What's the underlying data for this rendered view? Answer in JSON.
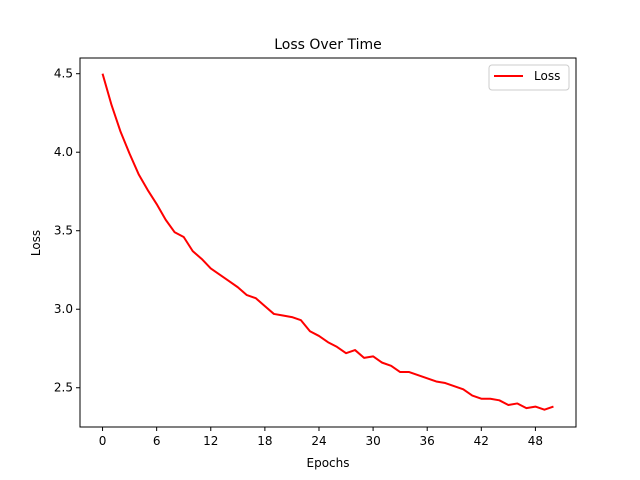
{
  "chart_data": {
    "type": "line",
    "title": "Loss Over Time",
    "xlabel": "Epochs",
    "ylabel": "Loss",
    "xlim": [
      -2.5,
      52.5
    ],
    "ylim": [
      2.25,
      4.6
    ],
    "xticks": [
      0,
      6,
      12,
      18,
      24,
      30,
      36,
      42,
      48
    ],
    "xtick_labels": [
      "0",
      "6",
      "12",
      "18",
      "24",
      "30",
      "36",
      "42",
      "48"
    ],
    "yticks": [
      2.5,
      3.0,
      3.5,
      4.0,
      4.5
    ],
    "ytick_labels": [
      "2.5",
      "3.0",
      "3.5",
      "4.0",
      "4.5"
    ],
    "grid": false,
    "legend": {
      "placement": "top-right",
      "entries": [
        "Loss"
      ]
    },
    "series": [
      {
        "name": "Loss",
        "color": "#ff0000",
        "x": [
          0,
          1,
          2,
          3,
          4,
          5,
          6,
          7,
          8,
          9,
          10,
          11,
          12,
          13,
          14,
          15,
          16,
          17,
          18,
          19,
          20,
          21,
          22,
          23,
          24,
          25,
          26,
          27,
          28,
          29,
          30,
          31,
          32,
          33,
          34,
          35,
          36,
          37,
          38,
          39,
          40,
          41,
          42,
          43,
          44,
          45,
          46,
          47,
          48,
          49,
          50
        ],
        "y": [
          4.5,
          4.3,
          4.13,
          3.99,
          3.86,
          3.76,
          3.67,
          3.57,
          3.49,
          3.46,
          3.37,
          3.32,
          3.26,
          3.22,
          3.18,
          3.14,
          3.09,
          3.07,
          3.02,
          2.97,
          2.96,
          2.95,
          2.93,
          2.86,
          2.83,
          2.79,
          2.76,
          2.72,
          2.74,
          2.69,
          2.7,
          2.66,
          2.64,
          2.6,
          2.6,
          2.58,
          2.56,
          2.54,
          2.53,
          2.51,
          2.49,
          2.45,
          2.43,
          2.43,
          2.42,
          2.39,
          2.4,
          2.37,
          2.38,
          2.36,
          2.38
        ]
      }
    ]
  }
}
